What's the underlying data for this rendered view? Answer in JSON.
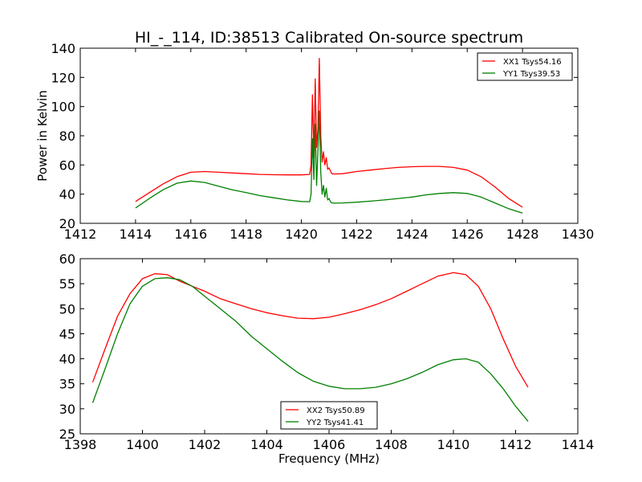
{
  "figure_title": "HI_-_114, ID:38513 Calibrated On-source spectrum",
  "chart_data": [
    {
      "type": "line",
      "title": "HI_-_114, ID:38513 Calibrated On-source spectrum",
      "xlabel": "",
      "ylabel": "Power in Kelvin",
      "xlim": [
        1412,
        1430
      ],
      "ylim": [
        20,
        140
      ],
      "xticks": [
        1412,
        1414,
        1416,
        1418,
        1420,
        1422,
        1424,
        1426,
        1428,
        1430
      ],
      "yticks": [
        20,
        40,
        60,
        80,
        100,
        120,
        140
      ],
      "grid": false,
      "legend_position": "top-right",
      "series": [
        {
          "name": "XX1 Tsys54.16",
          "color": "#ff0000",
          "x": [
            1414.0,
            1414.5,
            1415.0,
            1415.5,
            1416.0,
            1416.5,
            1417.0,
            1417.5,
            1418.0,
            1418.5,
            1419.0,
            1419.5,
            1420.0,
            1420.3,
            1420.35,
            1420.4,
            1420.45,
            1420.5,
            1420.55,
            1420.6,
            1420.65,
            1420.7,
            1420.75,
            1420.8,
            1420.85,
            1420.9,
            1420.95,
            1421.0,
            1421.05,
            1421.1,
            1421.2,
            1421.5,
            1422.0,
            1422.5,
            1423.0,
            1423.5,
            1424.0,
            1424.5,
            1425.0,
            1425.5,
            1426.0,
            1426.5,
            1427.0,
            1427.5,
            1428.0
          ],
          "y": [
            35,
            41,
            47,
            52,
            55,
            55.5,
            55,
            54.5,
            54,
            53.5,
            53.3,
            53.2,
            53.2,
            53.5,
            60,
            108,
            65,
            119,
            72,
            85,
            133,
            80,
            62,
            69,
            60,
            65,
            57,
            58,
            56,
            54,
            53.8,
            54,
            55.5,
            56.5,
            57.5,
            58.3,
            58.8,
            59,
            59,
            58.3,
            56.5,
            52,
            45,
            37,
            31
          ]
        },
        {
          "name": "YY1 Tsys39.53",
          "color": "#008000",
          "x": [
            1414.0,
            1414.5,
            1415.0,
            1415.5,
            1416.0,
            1416.5,
            1417.0,
            1417.5,
            1418.0,
            1418.5,
            1419.0,
            1419.5,
            1420.0,
            1420.3,
            1420.35,
            1420.4,
            1420.45,
            1420.5,
            1420.55,
            1420.6,
            1420.65,
            1420.7,
            1420.75,
            1420.8,
            1420.85,
            1420.9,
            1420.95,
            1421.0,
            1421.05,
            1421.1,
            1421.2,
            1421.5,
            1422.0,
            1422.5,
            1423.0,
            1423.5,
            1424.0,
            1424.5,
            1425.0,
            1425.5,
            1426.0,
            1426.5,
            1427.0,
            1427.5,
            1428.0
          ],
          "y": [
            30.5,
            37,
            43,
            47.5,
            49,
            48,
            45.5,
            43,
            41,
            39,
            37.5,
            36,
            35,
            34.8,
            40,
            78,
            50,
            88,
            46,
            70,
            97,
            55,
            40,
            46,
            38,
            44,
            36,
            37,
            35,
            34,
            33.8,
            34,
            34.5,
            35.2,
            36,
            37,
            38,
            39.5,
            40.5,
            41,
            40.5,
            38,
            34,
            30,
            27
          ]
        }
      ]
    },
    {
      "type": "line",
      "title": "",
      "xlabel": "Frequency (MHz)",
      "ylabel": "",
      "xlim": [
        1398,
        1414
      ],
      "ylim": [
        25,
        60
      ],
      "xticks": [
        1398,
        1400,
        1402,
        1404,
        1406,
        1408,
        1410,
        1412,
        1414
      ],
      "yticks": [
        25,
        30,
        35,
        40,
        45,
        50,
        55,
        60
      ],
      "grid": false,
      "legend_position": "bottom-center",
      "series": [
        {
          "name": "XX2 Tsys50.89",
          "color": "#ff0000",
          "x": [
            1398.4,
            1398.8,
            1399.2,
            1399.6,
            1400.0,
            1400.4,
            1400.8,
            1401.2,
            1401.6,
            1402.0,
            1402.5,
            1403.0,
            1403.5,
            1404.0,
            1404.5,
            1405.0,
            1405.5,
            1406.0,
            1406.5,
            1407.0,
            1407.5,
            1408.0,
            1408.5,
            1409.0,
            1409.5,
            1410.0,
            1410.4,
            1410.8,
            1411.2,
            1411.6,
            1412.0,
            1412.4
          ],
          "y": [
            35.3,
            42,
            48.5,
            53,
            56,
            57,
            56.8,
            55.5,
            54.5,
            53.5,
            52,
            51,
            50,
            49.2,
            48.6,
            48.1,
            48,
            48.3,
            49,
            49.8,
            50.8,
            52,
            53.5,
            55,
            56.5,
            57.2,
            56.8,
            54.5,
            50,
            44,
            38.5,
            34.3
          ]
        },
        {
          "name": "YY2 Tsys41.41",
          "color": "#008000",
          "x": [
            1398.4,
            1398.8,
            1399.2,
            1399.6,
            1400.0,
            1400.4,
            1400.8,
            1401.2,
            1401.6,
            1402.0,
            1402.5,
            1403.0,
            1403.5,
            1404.0,
            1404.5,
            1405.0,
            1405.5,
            1406.0,
            1406.5,
            1407.0,
            1407.5,
            1408.0,
            1408.5,
            1409.0,
            1409.5,
            1410.0,
            1410.4,
            1410.8,
            1411.2,
            1411.6,
            1412.0,
            1412.4
          ],
          "y": [
            31.2,
            38,
            45,
            51,
            54.5,
            56,
            56.2,
            55.8,
            54.5,
            52.5,
            50,
            47.5,
            44.5,
            42,
            39.5,
            37.2,
            35.5,
            34.5,
            34,
            34,
            34.3,
            35,
            36,
            37.3,
            38.8,
            39.8,
            40,
            39.3,
            37,
            34,
            30.5,
            27.5
          ]
        }
      ]
    }
  ]
}
